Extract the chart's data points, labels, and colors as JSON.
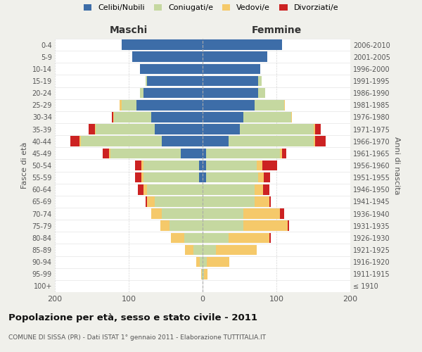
{
  "age_groups": [
    "100+",
    "95-99",
    "90-94",
    "85-89",
    "80-84",
    "75-79",
    "70-74",
    "65-69",
    "60-64",
    "55-59",
    "50-54",
    "45-49",
    "40-44",
    "35-39",
    "30-34",
    "25-29",
    "20-24",
    "15-19",
    "10-14",
    "5-9",
    "0-4"
  ],
  "birth_years": [
    "≤ 1910",
    "1911-1915",
    "1916-1920",
    "1921-1925",
    "1926-1930",
    "1931-1935",
    "1936-1940",
    "1941-1945",
    "1946-1950",
    "1951-1955",
    "1956-1960",
    "1961-1965",
    "1966-1970",
    "1971-1975",
    "1976-1980",
    "1981-1985",
    "1986-1990",
    "1991-1995",
    "1996-2000",
    "2001-2005",
    "2006-2010"
  ],
  "maschi": {
    "celibi": [
      0,
      0,
      0,
      0,
      0,
      0,
      0,
      0,
      0,
      5,
      5,
      30,
      55,
      65,
      70,
      90,
      80,
      75,
      85,
      95,
      110
    ],
    "coniugati": [
      0,
      1,
      4,
      12,
      25,
      45,
      55,
      65,
      75,
      75,
      75,
      95,
      110,
      80,
      50,
      20,
      5,
      2,
      0,
      0,
      0
    ],
    "vedovi": [
      0,
      1,
      5,
      12,
      18,
      12,
      15,
      10,
      5,
      3,
      3,
      2,
      2,
      1,
      1,
      2,
      0,
      0,
      0,
      0,
      0
    ],
    "divorziati": [
      0,
      0,
      0,
      0,
      0,
      0,
      0,
      2,
      8,
      8,
      8,
      8,
      12,
      8,
      2,
      0,
      0,
      0,
      0,
      0,
      0
    ]
  },
  "femmine": {
    "nubili": [
      0,
      0,
      0,
      0,
      0,
      0,
      0,
      0,
      0,
      5,
      5,
      5,
      35,
      50,
      55,
      70,
      75,
      75,
      78,
      88,
      108
    ],
    "coniugate": [
      0,
      2,
      6,
      18,
      35,
      55,
      55,
      70,
      70,
      70,
      68,
      100,
      115,
      100,
      65,
      40,
      10,
      5,
      0,
      0,
      0
    ],
    "vedove": [
      0,
      5,
      30,
      55,
      55,
      60,
      50,
      20,
      12,
      8,
      8,
      3,
      2,
      2,
      1,
      1,
      0,
      0,
      0,
      0,
      0
    ],
    "divorziate": [
      0,
      0,
      0,
      0,
      2,
      2,
      5,
      2,
      8,
      8,
      20,
      5,
      15,
      8,
      0,
      0,
      0,
      0,
      0,
      0,
      0
    ]
  },
  "colors": {
    "celibi": "#3d6da8",
    "coniugati": "#c5d8a0",
    "vedovi": "#f5c96a",
    "divorziati": "#cc2222"
  },
  "xlim": 200,
  "title": "Popolazione per età, sesso e stato civile - 2011",
  "subtitle": "COMUNE DI SISSA (PR) - Dati ISTAT 1° gennaio 2011 - Elaborazione TUTTITALIA.IT",
  "xlabel_left": "Maschi",
  "xlabel_right": "Femmine",
  "ylabel_left": "Fasce di età",
  "ylabel_right": "Anni di nascita",
  "legend_labels": [
    "Celibi/Nubili",
    "Coniugati/e",
    "Vedovi/e",
    "Divorziati/e"
  ],
  "bg_color": "#f0f0eb",
  "plot_bg_color": "#ffffff"
}
